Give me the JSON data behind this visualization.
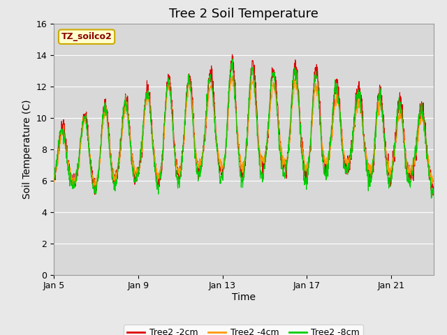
{
  "title": "Tree 2 Soil Temperature",
  "xlabel": "Time",
  "ylabel": "Soil Temperature (C)",
  "ylim": [
    0,
    16
  ],
  "yticks": [
    0,
    2,
    4,
    6,
    8,
    10,
    12,
    14,
    16
  ],
  "xtick_labels": [
    "Jan 5",
    "Jan 9",
    "Jan 13",
    "Jan 17",
    "Jan 21"
  ],
  "annotation_text": "TZ_soilco2",
  "line_colors": [
    "#dd0000",
    "#ff9900",
    "#00cc00"
  ],
  "line_labels": [
    "Tree2 -2cm",
    "Tree2 -4cm",
    "Tree2 -8cm"
  ],
  "plot_bg_color": "#d8d8d8",
  "fig_bg_color": "#e8e8e8",
  "grid_color": "#ffffff",
  "title_fontsize": 13,
  "axis_label_fontsize": 10,
  "tick_fontsize": 9
}
